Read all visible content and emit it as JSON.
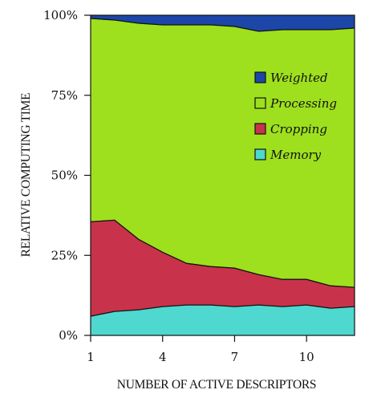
{
  "chart_data": {
    "type": "area",
    "stacked": true,
    "normalized": true,
    "title": "",
    "xlabel": "NUMBER OF ACTIVE DESCRIPTORS",
    "ylabel": "RELATIVE COMPUTING TIME",
    "x": [
      1,
      2,
      3,
      4,
      5,
      6,
      7,
      8,
      9,
      10,
      11,
      12
    ],
    "xlim": [
      1,
      12
    ],
    "xticks": [
      1,
      4,
      7,
      10
    ],
    "xtick_labels": [
      "1",
      "4",
      "7",
      "10"
    ],
    "ylim": [
      0,
      100
    ],
    "yticks": [
      0,
      25,
      50,
      75,
      100
    ],
    "ytick_labels": [
      "0%",
      "25%",
      "50%",
      "75%",
      "100%"
    ],
    "grid": false,
    "legend_position": "top-right",
    "series": [
      {
        "name": "Memory",
        "color": "#4fd8cf",
        "values": [
          6,
          7.5,
          8,
          9,
          9.5,
          9.5,
          9,
          9.5,
          9,
          9.5,
          8.5,
          9
        ]
      },
      {
        "name": "Cropping",
        "color": "#c8334b",
        "values": [
          29.5,
          28.5,
          22,
          17,
          13,
          12,
          12,
          9.5,
          8.5,
          8,
          7,
          6
        ]
      },
      {
        "name": "Processing",
        "color": "#9ee01d",
        "values": [
          63.5,
          62.5,
          67.5,
          71,
          74.5,
          75.5,
          75.5,
          76,
          78,
          78,
          80,
          81
        ]
      },
      {
        "name": "Weighted",
        "color": "#1c46a8",
        "values": [
          1,
          1.5,
          2.5,
          3,
          3,
          3,
          3.5,
          5,
          4.5,
          4.5,
          4.5,
          4
        ]
      }
    ],
    "legend_order": [
      "Weighted",
      "Processing",
      "Cropping",
      "Memory"
    ]
  }
}
